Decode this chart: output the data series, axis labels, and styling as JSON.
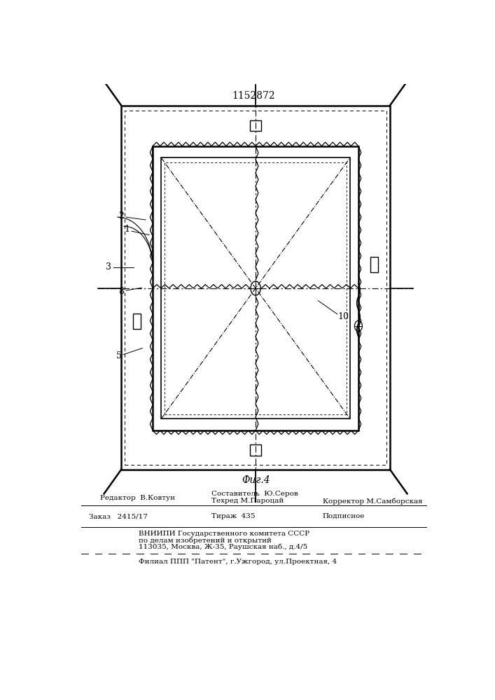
{
  "title": "1152872",
  "fig_label": "Фиг.4",
  "background_color": "#ffffff",
  "line_color": "#000000",
  "editor_line1": "Редактор  В.Ковтун",
  "editor_line2": "Составитель  Ю.Серов",
  "editor_line3": "Техред М.Пароцай",
  "editor_line4": "Корректор М.Самборская",
  "order_text": "Заказ   2415/17",
  "tirazh_text": "Тираж  435",
  "podpisnoe_text": "Подписное",
  "vniipi_line1": "ВНИИПИ Государственного комитета СССР",
  "vniipi_line2": "по делам изобретений и открытий",
  "vniipi_line3": "113035, Москва, Ж-35, Раушская наб., д.4/5",
  "filial_line": "Филиал ППП Патент, г.Ужгород, ул.Проектная, 4"
}
